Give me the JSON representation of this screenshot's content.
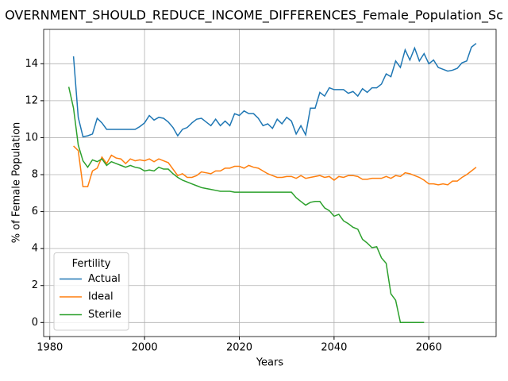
{
  "chart_data": {
    "type": "line",
    "title": "OVERNMENT_SHOULD_REDUCE_INCOME_DIFFERENCES_Female_Population_Sc",
    "xlabel": "Years",
    "ylabel": "% of Female Population",
    "x": [
      1984,
      1985,
      1986,
      1987,
      1988,
      1989,
      1990,
      1991,
      1992,
      1993,
      1994,
      1995,
      1996,
      1997,
      1998,
      1999,
      2000,
      2001,
      2002,
      2003,
      2004,
      2005,
      2006,
      2007,
      2008,
      2009,
      2010,
      2011,
      2012,
      2013,
      2014,
      2015,
      2016,
      2017,
      2018,
      2019,
      2020,
      2021,
      2022,
      2023,
      2024,
      2025,
      2026,
      2027,
      2028,
      2029,
      2030,
      2031,
      2032,
      2033,
      2034,
      2035,
      2036,
      2037,
      2038,
      2039,
      2040,
      2041,
      2042,
      2043,
      2044,
      2045,
      2046,
      2047,
      2048,
      2049,
      2050,
      2051,
      2052,
      2053,
      2054,
      2055,
      2056,
      2057,
      2058,
      2059,
      2060,
      2061,
      2062,
      2063,
      2064,
      2065,
      2066,
      2067,
      2068,
      2069,
      2070
    ],
    "series": [
      {
        "name": "Actual",
        "color": "#1f77b4",
        "values": [
          null,
          14.4,
          11.1,
          10.05,
          10.1,
          10.2,
          11.05,
          10.8,
          10.45,
          10.45,
          10.45,
          10.45,
          10.45,
          10.45,
          10.45,
          10.6,
          10.8,
          11.2,
          10.95,
          11.1,
          11.05,
          10.85,
          10.55,
          10.1,
          10.45,
          10.55,
          10.8,
          11.0,
          11.05,
          10.85,
          10.65,
          11.0,
          10.65,
          10.9,
          10.65,
          11.3,
          11.2,
          11.45,
          11.3,
          11.3,
          11.05,
          10.65,
          10.75,
          10.5,
          11.0,
          10.75,
          11.1,
          10.9,
          10.2,
          10.65,
          10.15,
          11.6,
          11.6,
          12.45,
          12.25,
          12.7,
          12.6,
          12.6,
          12.6,
          12.4,
          12.5,
          12.25,
          12.65,
          12.45,
          12.7,
          12.7,
          12.9,
          13.45,
          13.3,
          14.15,
          13.8,
          14.75,
          14.2,
          14.85,
          14.15,
          14.55,
          14.0,
          14.2,
          13.8,
          13.7,
          13.6,
          13.65,
          13.75,
          14.05,
          14.15,
          14.9,
          15.1
        ]
      },
      {
        "name": "Ideal",
        "color": "#ff7f0e",
        "values": [
          null,
          9.55,
          9.3,
          7.35,
          7.35,
          8.2,
          8.35,
          8.95,
          8.6,
          9.05,
          8.9,
          8.85,
          8.6,
          8.85,
          8.75,
          8.8,
          8.75,
          8.85,
          8.7,
          8.85,
          8.75,
          8.65,
          8.3,
          7.95,
          8.05,
          7.85,
          7.85,
          7.95,
          8.15,
          8.1,
          8.05,
          8.2,
          8.2,
          8.35,
          8.35,
          8.45,
          8.45,
          8.35,
          8.5,
          8.4,
          8.35,
          8.2,
          8.05,
          7.95,
          7.85,
          7.85,
          7.9,
          7.9,
          7.8,
          7.95,
          7.8,
          7.85,
          7.9,
          7.95,
          7.85,
          7.9,
          7.7,
          7.9,
          7.85,
          7.95,
          7.95,
          7.9,
          7.75,
          7.75,
          7.8,
          7.8,
          7.8,
          7.9,
          7.8,
          7.95,
          7.9,
          8.1,
          8.05,
          7.95,
          7.85,
          7.7,
          7.5,
          7.5,
          7.45,
          7.5,
          7.45,
          7.65,
          7.65,
          7.85,
          8.0,
          8.2,
          8.4
        ]
      },
      {
        "name": "Sterile",
        "color": "#2ca02c",
        "values": [
          12.75,
          11.6,
          9.6,
          8.75,
          8.4,
          8.8,
          8.7,
          8.85,
          8.5,
          8.7,
          8.6,
          8.5,
          8.4,
          8.5,
          8.4,
          8.35,
          8.2,
          8.25,
          8.2,
          8.4,
          8.3,
          8.3,
          8.05,
          7.85,
          7.7,
          7.6,
          7.5,
          7.4,
          7.3,
          7.25,
          7.2,
          7.15,
          7.1,
          7.1,
          7.1,
          7.05,
          7.05,
          7.05,
          7.05,
          7.05,
          7.05,
          7.05,
          7.05,
          7.05,
          7.05,
          7.05,
          7.05,
          7.05,
          6.75,
          6.55,
          6.35,
          6.5,
          6.55,
          6.55,
          6.2,
          6.05,
          5.75,
          5.85,
          5.5,
          5.35,
          5.15,
          5.05,
          4.5,
          4.3,
          4.05,
          4.1,
          3.5,
          3.2,
          1.55,
          1.2,
          0,
          0,
          0,
          0,
          0,
          0,
          null,
          null,
          null,
          null,
          null,
          null,
          null,
          null,
          null,
          null,
          null
        ]
      }
    ],
    "xlim": [
      1978.7,
      2074.2
    ],
    "xticks": [
      1980,
      2000,
      2020,
      2040,
      2060
    ],
    "ylim": [
      -0.76,
      15.86
    ],
    "yticks": [
      0,
      2,
      4,
      6,
      8,
      10,
      12,
      14
    ],
    "grid": true,
    "legend": {
      "title": "Fertility",
      "loc": "lower left"
    }
  }
}
